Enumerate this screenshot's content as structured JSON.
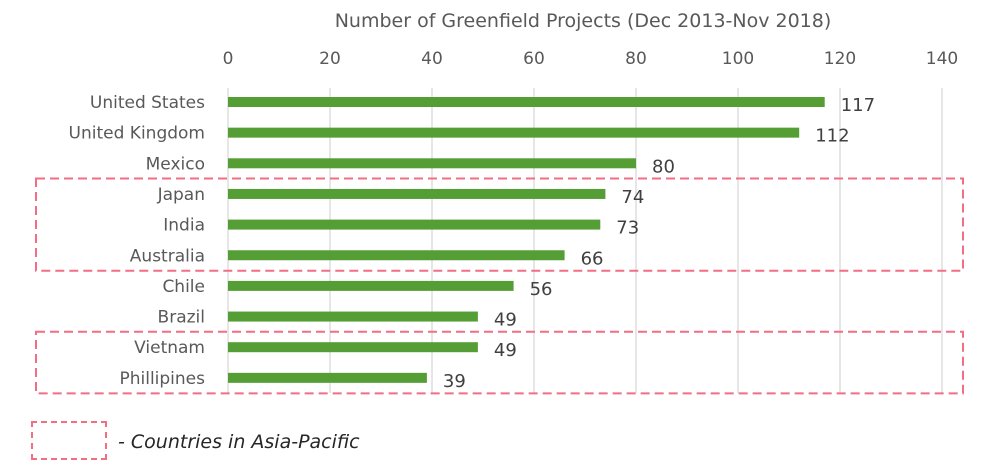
{
  "chart_data": {
    "type": "bar",
    "orientation": "horizontal",
    "title": "Number of Greenfield Projects (Dec 2013-Nov 2018)",
    "categories": [
      "United States",
      "United Kingdom",
      "Mexico",
      "Japan",
      "India",
      "Australia",
      "Chile",
      "Brazil",
      "Vietnam",
      "Phillipines"
    ],
    "values": [
      117,
      112,
      80,
      74,
      73,
      66,
      56,
      49,
      49,
      39
    ],
    "xlim": [
      0,
      140
    ],
    "x_ticks": [
      "0",
      "20",
      "40",
      "60",
      "80",
      "100",
      "120",
      "140"
    ],
    "x_axis_position": "top",
    "grid": true,
    "data_labels": true,
    "bar_color": "#559e36",
    "highlight_color": "#f26e84",
    "highlight_groups": [
      [
        "Japan",
        "India",
        "Australia"
      ],
      [
        "Vietnam",
        "Phillipines"
      ]
    ],
    "legend": {
      "text": "- Countries in Asia-Pacific",
      "placement": "bottom-left"
    }
  }
}
